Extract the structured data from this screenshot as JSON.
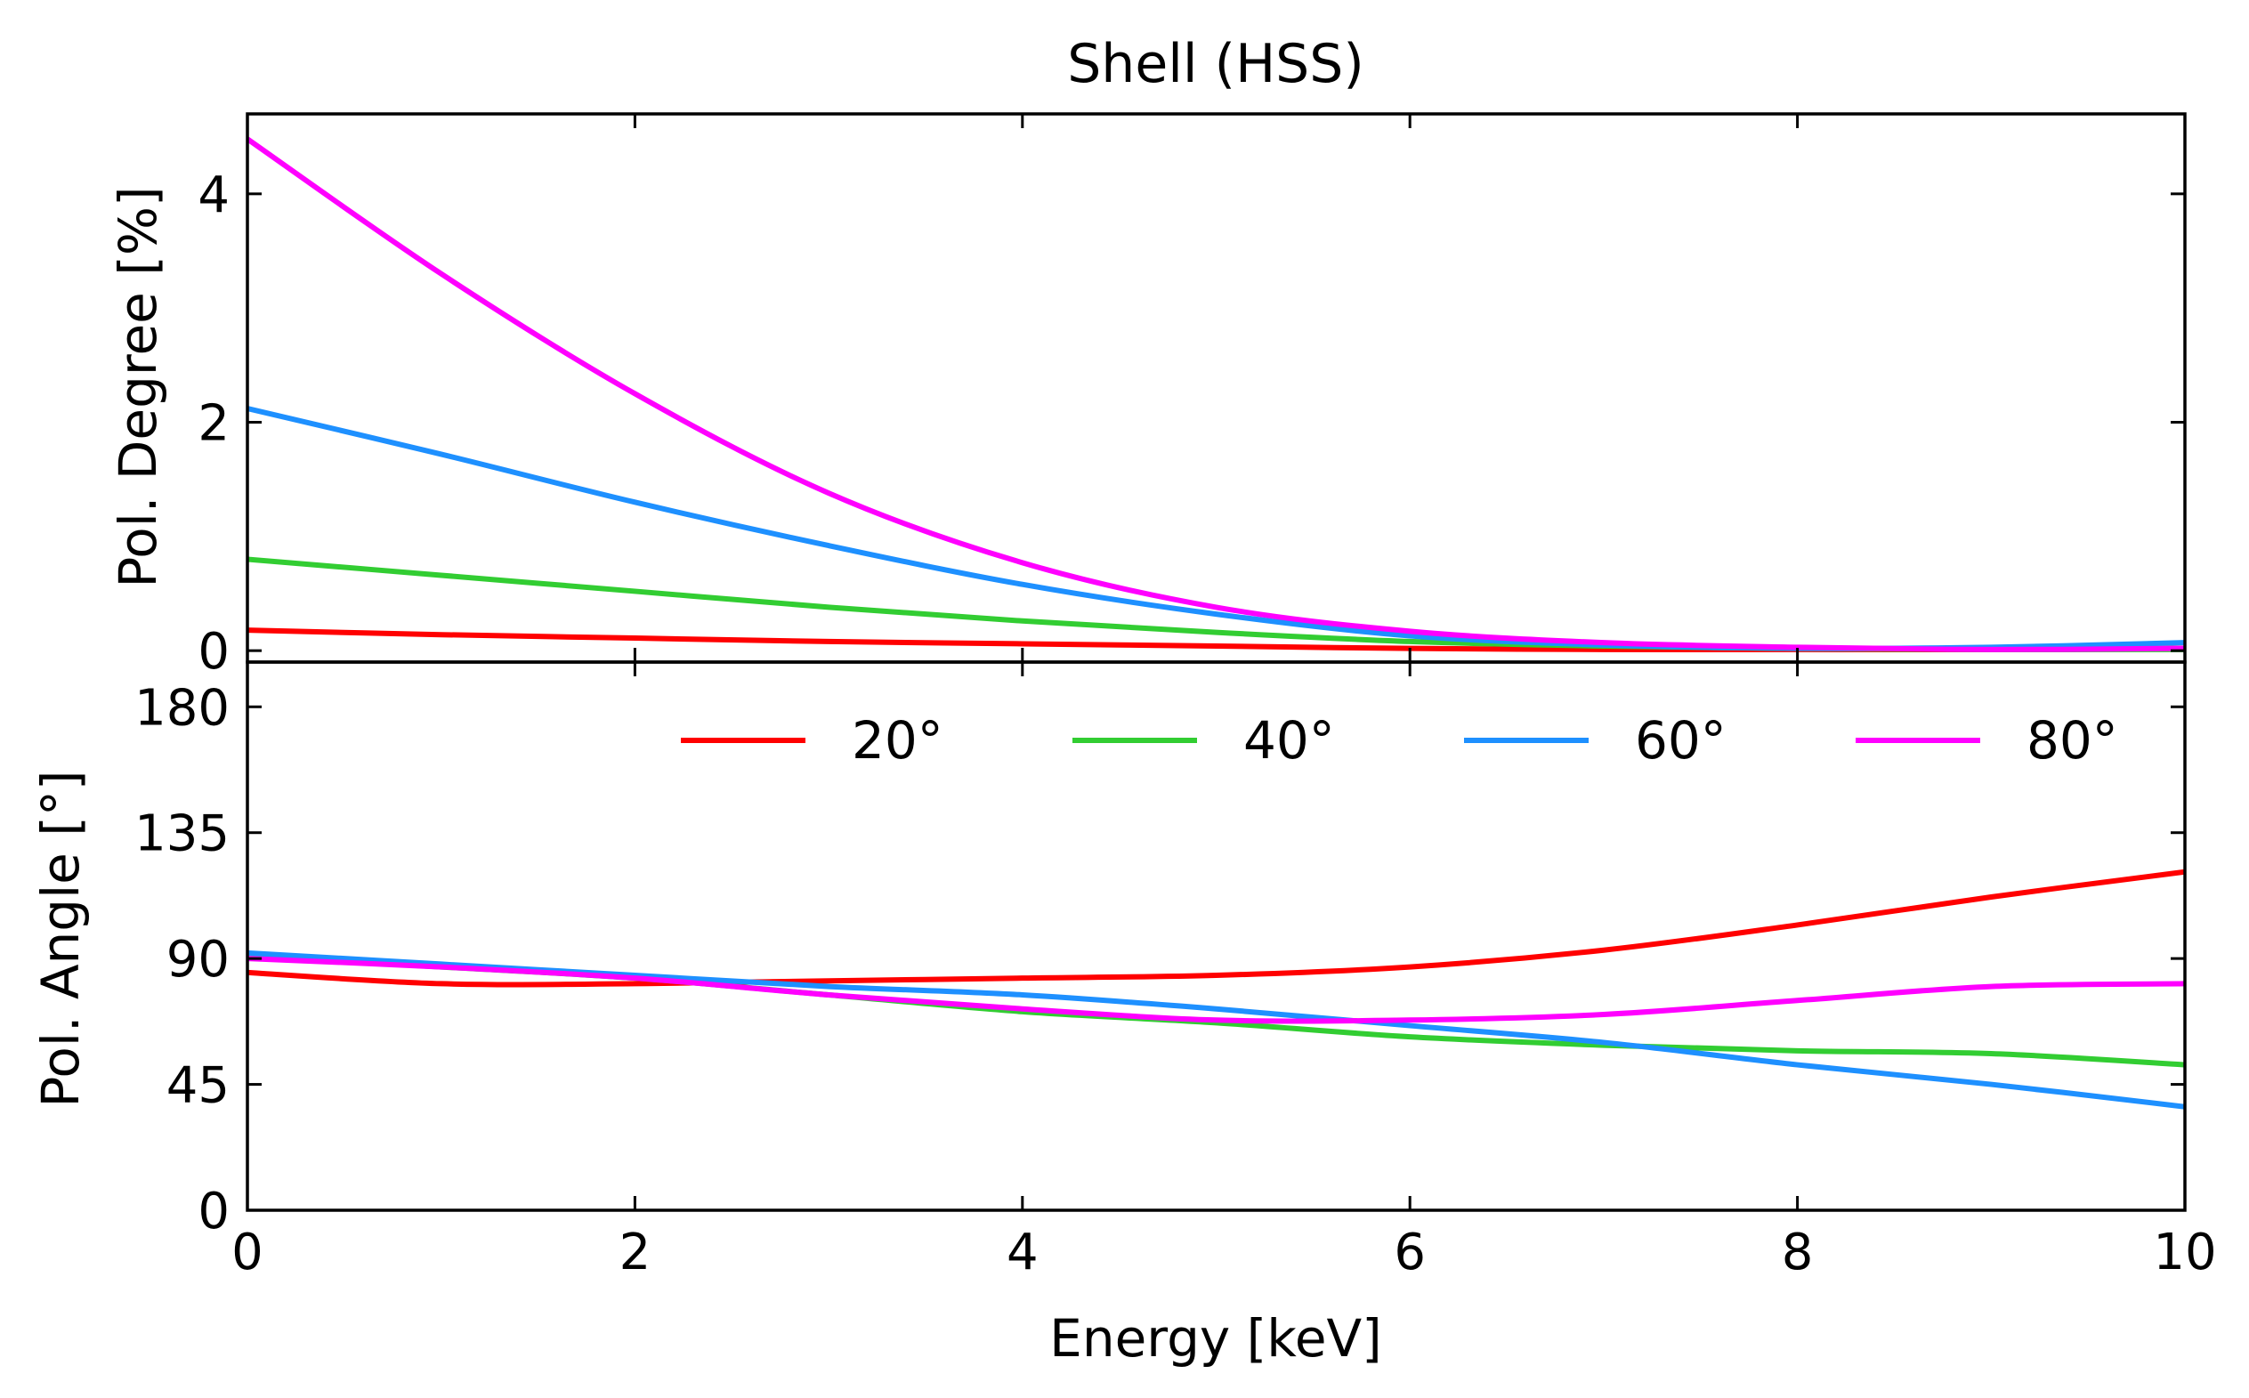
{
  "chart_data": [
    {
      "type": "line",
      "panel": "top",
      "title": "Shell (HSS)",
      "xlabel": "",
      "ylabel": "Pol. Degree [%]",
      "xlim": [
        0,
        10
      ],
      "ylim": [
        -0.1,
        4.7
      ],
      "xticks": [
        0,
        2,
        4,
        6,
        8,
        10
      ],
      "yticks": [
        0,
        2,
        4
      ],
      "ytick_labels": [
        "0",
        "2",
        "4"
      ],
      "x": [
        0,
        1,
        2,
        3,
        4,
        5,
        6,
        7,
        8,
        9,
        10
      ],
      "series": [
        {
          "name": "20°",
          "color": "#ff0000",
          "values": [
            0.18,
            0.14,
            0.11,
            0.08,
            0.06,
            0.04,
            0.02,
            0.01,
            0.01,
            0.01,
            0.02
          ]
        },
        {
          "name": "40°",
          "color": "#32cd32",
          "values": [
            0.8,
            0.66,
            0.52,
            0.38,
            0.26,
            0.16,
            0.08,
            0.04,
            0.02,
            0.01,
            0.01
          ]
        },
        {
          "name": "60°",
          "color": "#1e90ff",
          "values": [
            2.12,
            1.72,
            1.3,
            0.92,
            0.58,
            0.32,
            0.13,
            0.05,
            0.02,
            0.03,
            0.07
          ]
        },
        {
          "name": "80°",
          "color": "#ff00ff",
          "values": [
            4.48,
            3.3,
            2.25,
            1.38,
            0.77,
            0.38,
            0.17,
            0.07,
            0.03,
            0.01,
            0.02
          ]
        }
      ]
    },
    {
      "type": "line",
      "panel": "bottom",
      "title": "",
      "xlabel": "Energy [keV]",
      "ylabel": "Pol. Angle [°]",
      "xlim": [
        0,
        10
      ],
      "ylim": [
        0,
        196
      ],
      "xticks": [
        0,
        2,
        4,
        6,
        8,
        10
      ],
      "xtick_labels": [
        "0",
        "2",
        "4",
        "6",
        "8",
        "10"
      ],
      "yticks": [
        0,
        45,
        90,
        135,
        180
      ],
      "ytick_labels": [
        "0",
        "45",
        "90",
        "135",
        "180"
      ],
      "legend_position": "upper-right",
      "x": [
        0,
        1,
        2,
        3,
        4,
        5,
        6,
        7,
        8,
        9,
        10
      ],
      "series": [
        {
          "name": "20°",
          "color": "#ff0000",
          "values": [
            85,
            81,
            81,
            82,
            83,
            84,
            87,
            93,
            102,
            112,
            121
          ]
        },
        {
          "name": "40°",
          "color": "#32cd32",
          "values": [
            91,
            87,
            83,
            77,
            71,
            67,
            62,
            59,
            57,
            56,
            52
          ]
        },
        {
          "name": "60°",
          "color": "#1e90ff",
          "values": [
            92,
            88,
            84,
            80,
            77,
            72,
            66,
            60,
            52,
            45,
            37
          ]
        },
        {
          "name": "80°",
          "color": "#ff00ff",
          "values": [
            90,
            87,
            83,
            77,
            72,
            68,
            68,
            70,
            75,
            80,
            81
          ]
        }
      ]
    }
  ]
}
